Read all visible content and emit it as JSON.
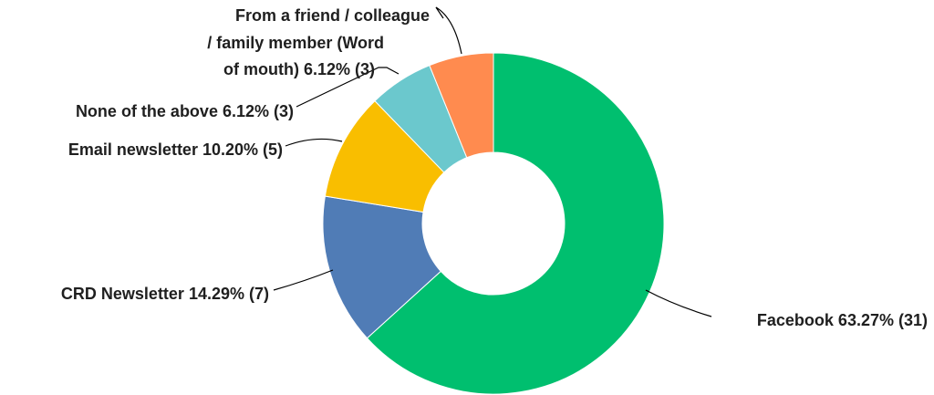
{
  "chart_data": {
    "type": "pie",
    "title": "",
    "donut": true,
    "slices": [
      {
        "label": "Facebook",
        "percent": 63.27,
        "count": 31,
        "color": "#00BF6F",
        "text": "Facebook 63.27% (31)"
      },
      {
        "label": "CRD Newsletter",
        "percent": 14.29,
        "count": 7,
        "color": "#507CB6",
        "text": "CRD Newsletter 14.29% (7)"
      },
      {
        "label": "Email newsletter",
        "percent": 10.2,
        "count": 5,
        "color": "#F9BE00",
        "text": "Email newsletter 10.20% (5)"
      },
      {
        "label": "None of the above",
        "percent": 6.12,
        "count": 3,
        "color": "#6BC8CD",
        "text": "None of the above 6.12% (3)"
      },
      {
        "label": "From a friend / colleague / family member (Word of mouth)",
        "percent": 6.12,
        "count": 3,
        "color": "#FF8B4F",
        "text_lines": [
          "From a friend / colleague",
          "/ family member (Word",
          "of mouth) 6.12% (3)"
        ]
      }
    ]
  }
}
